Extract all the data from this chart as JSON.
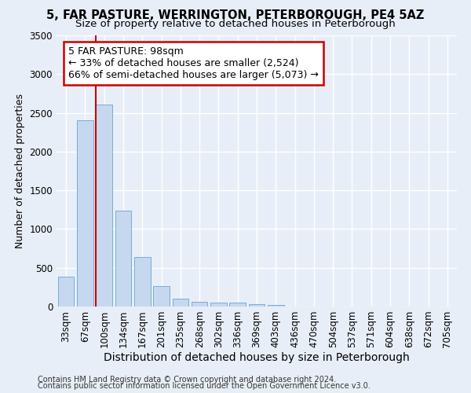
{
  "title1": "5, FAR PASTURE, WERRINGTON, PETERBOROUGH, PE4 5AZ",
  "title2": "Size of property relative to detached houses in Peterborough",
  "xlabel": "Distribution of detached houses by size in Peterborough",
  "ylabel": "Number of detached properties",
  "footnote1": "Contains HM Land Registry data © Crown copyright and database right 2024.",
  "footnote2": "Contains public sector information licensed under the Open Government Licence v3.0.",
  "categories": [
    "33sqm",
    "67sqm",
    "100sqm",
    "134sqm",
    "167sqm",
    "201sqm",
    "235sqm",
    "268sqm",
    "302sqm",
    "336sqm",
    "369sqm",
    "403sqm",
    "436sqm",
    "470sqm",
    "504sqm",
    "537sqm",
    "571sqm",
    "604sqm",
    "638sqm",
    "672sqm",
    "705sqm"
  ],
  "values": [
    390,
    2400,
    2610,
    1240,
    640,
    260,
    100,
    60,
    55,
    50,
    30,
    25,
    0,
    0,
    0,
    0,
    0,
    0,
    0,
    0,
    0
  ],
  "bar_color": "#c5d8f0",
  "bar_edge_color": "#7aacd4",
  "vline_color": "#cc0000",
  "annotation_text": "5 FAR PASTURE: 98sqm\n← 33% of detached houses are smaller (2,524)\n66% of semi-detached houses are larger (5,073) →",
  "annotation_box_color": "#ffffff",
  "annotation_border_color": "#cc0000",
  "ylim": [
    0,
    3500
  ],
  "yticks": [
    0,
    500,
    1000,
    1500,
    2000,
    2500,
    3000,
    3500
  ],
  "background_color": "#e8eef7",
  "grid_color": "#ffffff",
  "title1_fontsize": 10.5,
  "title2_fontsize": 9.5,
  "ylabel_fontsize": 9,
  "xlabel_fontsize": 10,
  "tick_fontsize": 8.5,
  "annotation_fontsize": 9,
  "footnote_fontsize": 7
}
